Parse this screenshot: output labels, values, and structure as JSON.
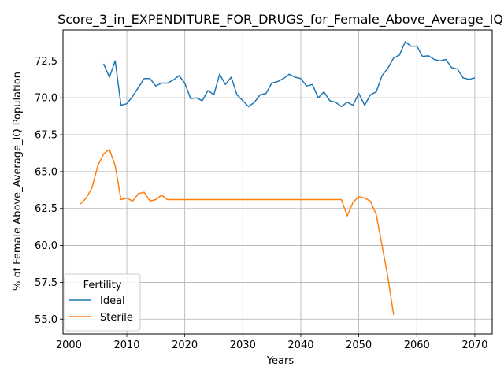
{
  "chart_data": {
    "type": "line",
    "title": "Score_3_in_EXPENDITURE_FOR_DRUGS_for_Female_Above_Average_IQ",
    "xlabel": "Years",
    "ylabel": "% of Female Above_Average_IQ Population",
    "xlim": [
      1999,
      2073
    ],
    "ylim": [
      54.0,
      74.6
    ],
    "xticks": [
      2000,
      2010,
      2020,
      2030,
      2040,
      2050,
      2060,
      2070
    ],
    "yticks": [
      55.0,
      57.5,
      60.0,
      62.5,
      65.0,
      67.5,
      70.0,
      72.5
    ],
    "xtick_labels": [
      "2000",
      "2010",
      "2020",
      "2030",
      "2040",
      "2050",
      "2060",
      "2070"
    ],
    "ytick_labels": [
      "55.0",
      "57.5",
      "60.0",
      "62.5",
      "65.0",
      "67.5",
      "70.0",
      "72.5"
    ],
    "grid": true,
    "legend": {
      "title": "Fertility",
      "placement": "lower-left"
    },
    "series": [
      {
        "name": "Ideal",
        "color": "#1f77b4",
        "x": [
          2006,
          2007,
          2008,
          2009,
          2010,
          2011,
          2012,
          2013,
          2014,
          2015,
          2016,
          2017,
          2018,
          2019,
          2020,
          2021,
          2022,
          2023,
          2024,
          2025,
          2026,
          2027,
          2028,
          2029,
          2030,
          2031,
          2032,
          2033,
          2034,
          2035,
          2036,
          2037,
          2038,
          2039,
          2040,
          2041,
          2042,
          2043,
          2044,
          2045,
          2046,
          2047,
          2048,
          2049,
          2050,
          2051,
          2052,
          2053,
          2054,
          2055,
          2056,
          2057,
          2058,
          2059,
          2060,
          2061,
          2062,
          2063,
          2064,
          2065,
          2066,
          2067,
          2068,
          2069,
          2070
        ],
        "y": [
          72.3,
          71.4,
          72.5,
          69.5,
          69.6,
          70.1,
          70.7,
          71.3,
          71.3,
          70.8,
          71.0,
          71.0,
          71.2,
          71.5,
          71.0,
          69.95,
          70.0,
          69.8,
          70.5,
          70.2,
          71.6,
          70.9,
          71.4,
          70.2,
          69.8,
          69.4,
          69.7,
          70.2,
          70.3,
          71.0,
          71.1,
          71.3,
          71.6,
          71.4,
          71.3,
          70.8,
          70.9,
          70.0,
          70.4,
          69.8,
          69.7,
          69.4,
          69.7,
          69.5,
          70.3,
          69.5,
          70.2,
          70.4,
          71.5,
          72.0,
          72.7,
          72.9,
          73.8,
          73.5,
          73.5,
          72.8,
          72.85,
          72.6,
          72.5,
          72.6,
          72.05,
          71.95,
          71.35,
          71.25,
          71.35
        ]
      },
      {
        "name": "Sterile",
        "color": "#ff7f0e",
        "x": [
          2002,
          2003,
          2004,
          2005,
          2006,
          2007,
          2008,
          2009,
          2010,
          2011,
          2012,
          2013,
          2014,
          2015,
          2016,
          2017,
          2018,
          2019,
          2020,
          2021,
          2022,
          2023,
          2024,
          2025,
          2026,
          2027,
          2028,
          2029,
          2030,
          2031,
          2032,
          2033,
          2034,
          2035,
          2036,
          2037,
          2038,
          2039,
          2040,
          2041,
          2042,
          2043,
          2044,
          2045,
          2046,
          2047,
          2048,
          2049,
          2050,
          2051,
          2052,
          2053,
          2054,
          2055,
          2056
        ],
        "y": [
          62.8,
          63.2,
          63.9,
          65.4,
          66.2,
          66.5,
          65.4,
          63.1,
          63.2,
          63.0,
          63.5,
          63.6,
          63.0,
          63.1,
          63.4,
          63.1,
          63.1,
          63.1,
          63.1,
          63.1,
          63.1,
          63.1,
          63.1,
          63.1,
          63.1,
          63.1,
          63.1,
          63.1,
          63.1,
          63.1,
          63.1,
          63.1,
          63.1,
          63.1,
          63.1,
          63.1,
          63.1,
          63.1,
          63.1,
          63.1,
          63.1,
          63.1,
          63.1,
          63.1,
          63.1,
          63.1,
          62.0,
          62.9,
          63.3,
          63.2,
          63.0,
          62.1,
          60.0,
          57.9,
          55.3
        ]
      }
    ]
  }
}
